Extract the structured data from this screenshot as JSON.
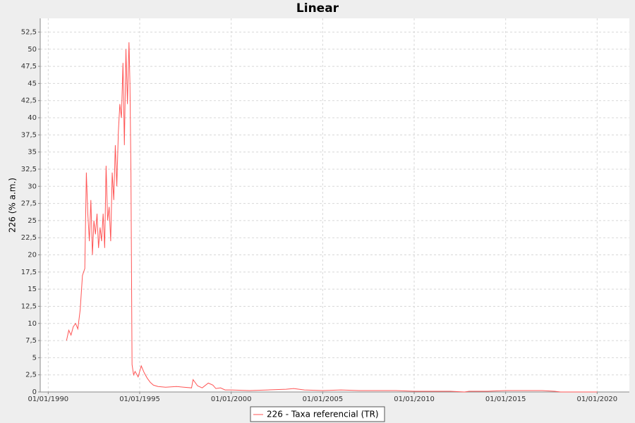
{
  "chart_data": {
    "type": "line",
    "title": "Linear",
    "y_label": "226 (% a.m.)",
    "x": [
      "1991-01-01",
      "1991-02-15",
      "1991-04-01",
      "1991-05-15",
      "1991-07-01",
      "1991-08-15",
      "1991-10-01",
      "1991-11-15",
      "1992-01-01",
      "1992-02-01",
      "1992-03-01",
      "1992-04-01",
      "1992-05-01",
      "1992-06-01",
      "1992-07-01",
      "1992-08-01",
      "1992-09-01",
      "1992-10-01",
      "1992-11-01",
      "1992-12-01",
      "1993-01-01",
      "1993-02-01",
      "1993-03-01",
      "1993-04-01",
      "1993-05-01",
      "1993-06-01",
      "1993-07-01",
      "1993-08-01",
      "1993-09-01",
      "1993-10-01",
      "1993-11-01",
      "1993-12-01",
      "1994-01-01",
      "1994-02-01",
      "1994-03-01",
      "1994-04-01",
      "1994-05-01",
      "1994-06-01",
      "1994-06-20",
      "1994-07-10",
      "1994-08-01",
      "1994-09-01",
      "1994-10-01",
      "1994-12-01",
      "1995-02-01",
      "1995-04-01",
      "1995-06-01",
      "1995-08-01",
      "1995-10-01",
      "1996-01-01",
      "1996-06-01",
      "1997-01-01",
      "1997-06-01",
      "1997-11-01",
      "1997-12-01",
      "1998-03-01",
      "1998-06-01",
      "1998-10-01",
      "1999-01-01",
      "1999-03-01",
      "1999-06-01",
      "1999-09-01",
      "2000-01-01",
      "2001-01-01",
      "2002-01-01",
      "2003-01-01",
      "2003-06-01",
      "2004-01-01",
      "2005-01-01",
      "2006-01-01",
      "2007-01-01",
      "2008-01-01",
      "2009-01-01",
      "2010-01-01",
      "2011-01-01",
      "2012-01-01",
      "2012-10-01",
      "2013-01-01",
      "2014-01-01",
      "2015-01-01",
      "2016-01-01",
      "2017-01-01",
      "2017-09-01",
      "2018-01-01",
      "2020-01-01"
    ],
    "series": [
      {
        "name": "226 - Taxa referencial (TR)",
        "color": "#ff5555",
        "values": [
          7.5,
          9,
          8.3,
          9.5,
          10,
          9.2,
          12,
          17,
          18,
          32,
          26,
          22,
          28,
          20,
          25,
          23,
          26,
          21,
          24,
          22,
          26,
          21,
          33,
          25,
          27,
          22,
          32,
          28,
          36,
          30,
          38,
          42,
          40,
          48,
          36,
          50,
          42,
          51,
          45,
          32,
          4,
          2.5,
          3,
          2.2,
          3.8,
          2.8,
          2,
          1.4,
          1,
          0.8,
          0.7,
          0.8,
          0.7,
          0.6,
          1.8,
          0.9,
          0.6,
          1.3,
          1.0,
          0.5,
          0.6,
          0.3,
          0.3,
          0.2,
          0.3,
          0.4,
          0.5,
          0.3,
          0.2,
          0.3,
          0.2,
          0.2,
          0.2,
          0.1,
          0.1,
          0.1,
          0.0,
          0.1,
          0.1,
          0.2,
          0.2,
          0.2,
          0.1,
          0.0,
          0.0
        ]
      }
    ],
    "xlim": [
      "1989-07-25",
      "2021-10-05"
    ],
    "xticks": [
      {
        "value": "1990-01-01",
        "label": "01/01/1990"
      },
      {
        "value": "1995-01-01",
        "label": "01/01/1995"
      },
      {
        "value": "2000-01-01",
        "label": "01/01/2000"
      },
      {
        "value": "2005-01-01",
        "label": "01/01/2005"
      },
      {
        "value": "2010-01-01",
        "label": "01/01/2010"
      },
      {
        "value": "2015-01-01",
        "label": "01/01/2015"
      },
      {
        "value": "2020-01-01",
        "label": "01/01/2020"
      }
    ],
    "ylim": [
      0,
      54.5
    ],
    "yticks": [
      0,
      {
        "value": 2.5,
        "label": "2,5"
      },
      5,
      {
        "value": 7.5,
        "label": "7,5"
      },
      10,
      {
        "value": 12.5,
        "label": "12,5"
      },
      15,
      {
        "value": 17.5,
        "label": "17,5"
      },
      20,
      {
        "value": 22.5,
        "label": "22,5"
      },
      25,
      {
        "value": 27.5,
        "label": "27,5"
      },
      30,
      {
        "value": 32.5,
        "label": "32,5"
      },
      35,
      {
        "value": 37.5,
        "label": "37,5"
      },
      40,
      {
        "value": 42.5,
        "label": "42,5"
      },
      45,
      {
        "value": 47.5,
        "label": "47,5"
      },
      50,
      {
        "value": 52.5,
        "label": "52,5"
      }
    ],
    "grid": true
  }
}
